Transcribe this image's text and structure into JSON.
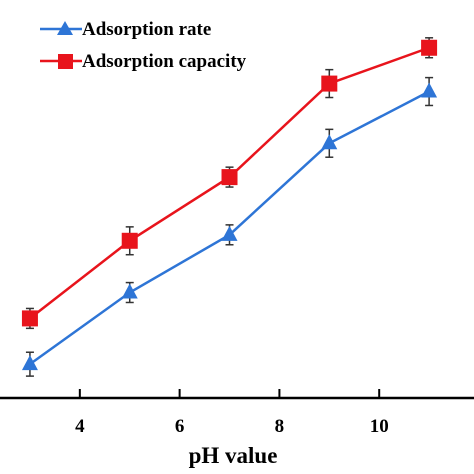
{
  "chart_data": {
    "type": "line",
    "xlabel": "pH value",
    "ylabel": "",
    "x": [
      3,
      5,
      7,
      9,
      11
    ],
    "xticks": [
      4,
      6,
      8,
      10
    ],
    "xlim": [
      2.4,
      11.9
    ],
    "ylim": [
      0,
      100
    ],
    "grid": false,
    "legend_position": "top-left",
    "series": [
      {
        "name": "Adsorption rate",
        "marker": "triangle",
        "color": "#2e75d6",
        "values": [
          8.5,
          26.5,
          41.0,
          64.0,
          77.0
        ],
        "errors": [
          3.0,
          2.5,
          2.5,
          3.5,
          3.5
        ]
      },
      {
        "name": "Adsorption capacity",
        "marker": "square",
        "color": "#e8141c",
        "values": [
          20.0,
          39.5,
          55.5,
          79.0,
          88.0
        ],
        "errors": [
          2.5,
          3.5,
          2.5,
          3.5,
          2.5
        ]
      }
    ]
  }
}
